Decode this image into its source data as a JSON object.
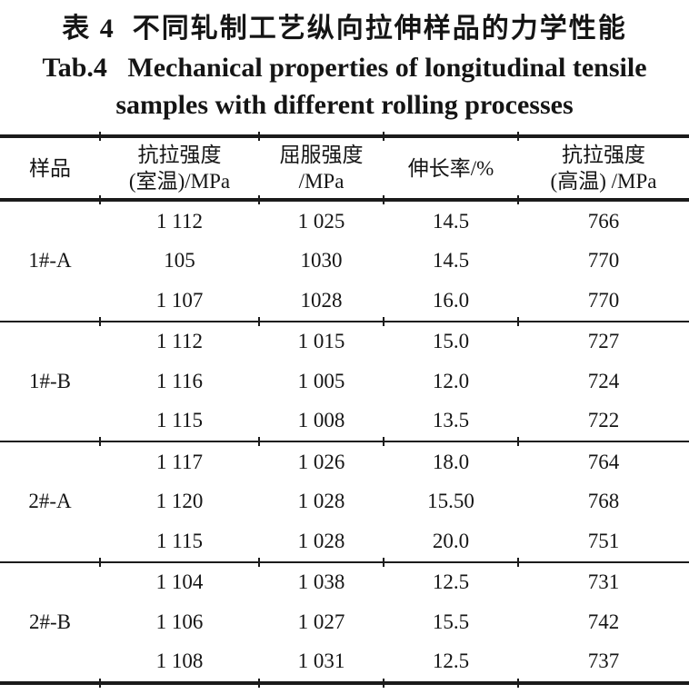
{
  "title": {
    "zh": "表 4  不同轧制工艺纵向拉伸样品的力学性能",
    "en_line1": "Tab.4   Mechanical properties of longitudinal tensile",
    "en_line2": "samples with different rolling processes"
  },
  "table": {
    "columns": [
      {
        "label": "样品"
      },
      {
        "line1": "抗拉强度",
        "line2": "(室温)/MPa"
      },
      {
        "line1": "屈服强度",
        "line2": "/MPa"
      },
      {
        "label": "伸长率/%"
      },
      {
        "line1": "抗拉强度",
        "line2": "(高温) /MPa"
      }
    ],
    "groups": [
      {
        "sample": "1#-A",
        "rows": [
          [
            "1 112",
            "1 025",
            "14.5",
            "766"
          ],
          [
            "105",
            "1030",
            "14.5",
            "770"
          ],
          [
            "1 107",
            "1028",
            "16.0",
            "770"
          ]
        ]
      },
      {
        "sample": "1#-B",
        "rows": [
          [
            "1 112",
            "1 015",
            "15.0",
            "727"
          ],
          [
            "1 116",
            "1 005",
            "12.0",
            "724"
          ],
          [
            "1 115",
            "1 008",
            "13.5",
            "722"
          ]
        ]
      },
      {
        "sample": "2#-A",
        "rows": [
          [
            "1 117",
            "1 026",
            "18.0",
            "764"
          ],
          [
            "1 120",
            "1 028",
            "15.50",
            "768"
          ],
          [
            "1 115",
            "1 028",
            "20.0",
            "751"
          ]
        ]
      },
      {
        "sample": "2#-B",
        "rows": [
          [
            "1 104",
            "1 038",
            "12.5",
            "731"
          ],
          [
            "1 106",
            "1 027",
            "15.5",
            "742"
          ],
          [
            "1 108",
            "1 031",
            "12.5",
            "737"
          ]
        ]
      }
    ]
  },
  "colors": {
    "text": "#151515",
    "rule": "#1b1b1b",
    "background": "#ffffff"
  }
}
